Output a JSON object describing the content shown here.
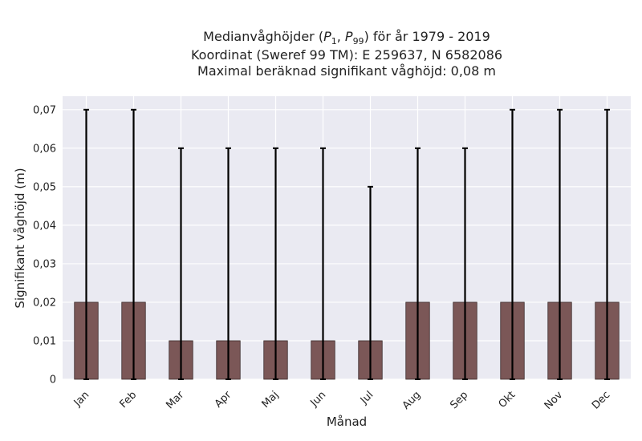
{
  "chart_data": {
    "type": "bar",
    "title_lines": [
      "Medianvåghöjder (P1, P99) för år 1979 - 2019",
      "Koordinat (Sweref 99 TM): E 259637, N 6582086",
      "Maximal beräknad signifikant våghöjd: 0,08 m"
    ],
    "xlabel": "Månad",
    "ylabel": "Signifikant våghöjd (m)",
    "categories": [
      "Jan",
      "Feb",
      "Mar",
      "Apr",
      "Maj",
      "Jun",
      "Jul",
      "Aug",
      "Sep",
      "Okt",
      "Nov",
      "Dec"
    ],
    "series": [
      {
        "values": [
          0.02,
          0.02,
          0.01,
          0.01,
          0.01,
          0.01,
          0.01,
          0.02,
          0.02,
          0.02,
          0.02,
          0.02
        ],
        "error_low": [
          0,
          0,
          0,
          0,
          0,
          0,
          0,
          0,
          0,
          0,
          0,
          0
        ],
        "error_high": [
          0.07,
          0.07,
          0.06,
          0.06,
          0.06,
          0.06,
          0.05,
          0.06,
          0.06,
          0.07,
          0.07,
          0.07
        ]
      }
    ],
    "ylim": [
      0,
      0.0735
    ],
    "yticks": [
      0,
      0.01,
      0.02,
      0.03,
      0.04,
      0.05,
      0.06,
      0.07
    ],
    "ytick_labels": [
      "0",
      "0,01",
      "0,02",
      "0,03",
      "0,04",
      "0,05",
      "0,06",
      "0,07"
    ],
    "grid": true,
    "colors": {
      "bar": "#7b5757",
      "bar_edge": "#3a2a2a",
      "error": "#000000",
      "plot_background": "#eaeaf2",
      "grid": "#ffffff"
    }
  }
}
